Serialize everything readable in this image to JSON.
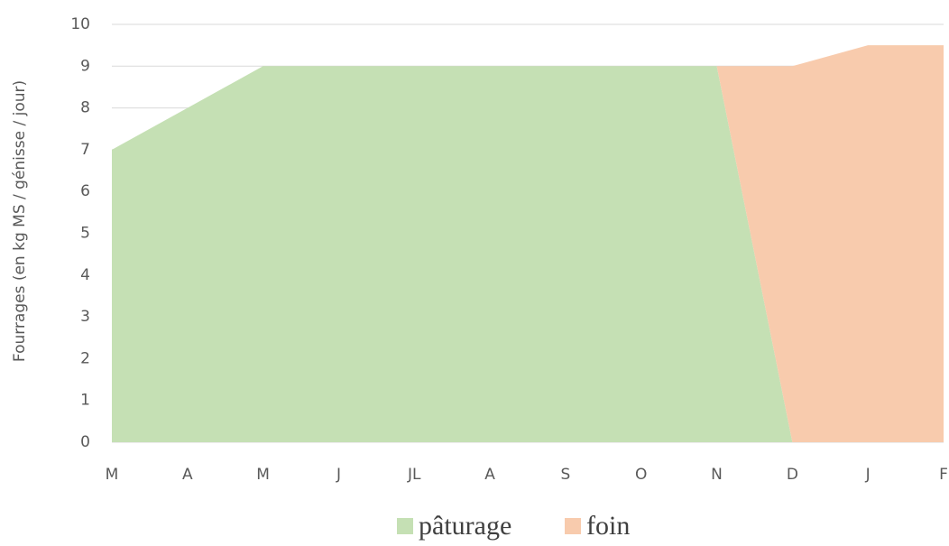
{
  "chart_data": {
    "type": "stacked_area",
    "y_label": "Fourrages (en kg MS / génisse / jour)",
    "categories": [
      "M",
      "A",
      "M",
      "J",
      "JL",
      "A",
      "S",
      "O",
      "N",
      "D",
      "J",
      "F"
    ],
    "series": [
      {
        "name": "pâturage",
        "color": "#c5e0b4",
        "values": [
          7,
          8,
          9,
          9,
          9,
          9,
          9,
          9,
          9,
          0,
          0,
          0
        ]
      },
      {
        "name": "foin",
        "color": "#f8cbad",
        "values": [
          0,
          0,
          0,
          0,
          0,
          0,
          0,
          0,
          0,
          9,
          9.5,
          9.5
        ]
      }
    ],
    "ylim": [
      0,
      10
    ],
    "yticks": [
      0,
      1,
      2,
      3,
      4,
      5,
      6,
      7,
      8,
      9,
      10
    ],
    "grid": true,
    "legend": "bottom"
  }
}
